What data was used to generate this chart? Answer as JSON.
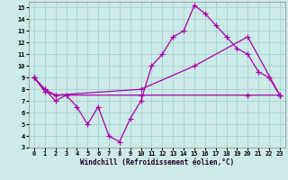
{
  "background_color": "#cceae8",
  "grid_color": "#aad4d0",
  "line_color": "#aa00aa",
  "xlim": [
    -0.5,
    23.5
  ],
  "ylim": [
    3,
    15.5
  ],
  "yticks": [
    3,
    4,
    5,
    6,
    7,
    8,
    9,
    10,
    11,
    12,
    13,
    14,
    15
  ],
  "xticks": [
    0,
    1,
    2,
    3,
    4,
    5,
    6,
    7,
    8,
    9,
    10,
    11,
    12,
    13,
    14,
    15,
    16,
    17,
    18,
    19,
    20,
    21,
    22,
    23
  ],
  "xlabel": "Windchill (Refroidissement éolien,°C)",
  "line1_x": [
    0,
    1,
    2,
    3,
    4,
    5,
    6,
    7,
    8,
    9,
    10,
    11,
    12,
    13,
    14,
    15,
    16,
    17,
    18,
    19,
    20,
    21,
    22,
    23
  ],
  "line1_y": [
    9.0,
    8.0,
    7.0,
    7.5,
    6.5,
    5.0,
    6.5,
    4.0,
    3.5,
    5.5,
    7.0,
    10.0,
    11.0,
    12.5,
    13.0,
    15.2,
    14.5,
    13.5,
    12.5,
    11.5,
    11.0,
    9.5,
    9.0,
    7.5
  ],
  "line2_x": [
    0,
    1,
    2,
    10,
    15,
    20,
    23
  ],
  "line2_y": [
    9.0,
    8.0,
    7.5,
    8.0,
    10.0,
    12.5,
    7.5
  ],
  "line3_x": [
    0,
    1,
    2,
    10,
    20,
    23
  ],
  "line3_y": [
    9.0,
    7.8,
    7.5,
    7.5,
    7.5,
    7.5
  ],
  "marker": "+",
  "markersize": 4,
  "linewidth": 0.9,
  "tick_fontsize": 5,
  "label_fontsize": 5.5
}
